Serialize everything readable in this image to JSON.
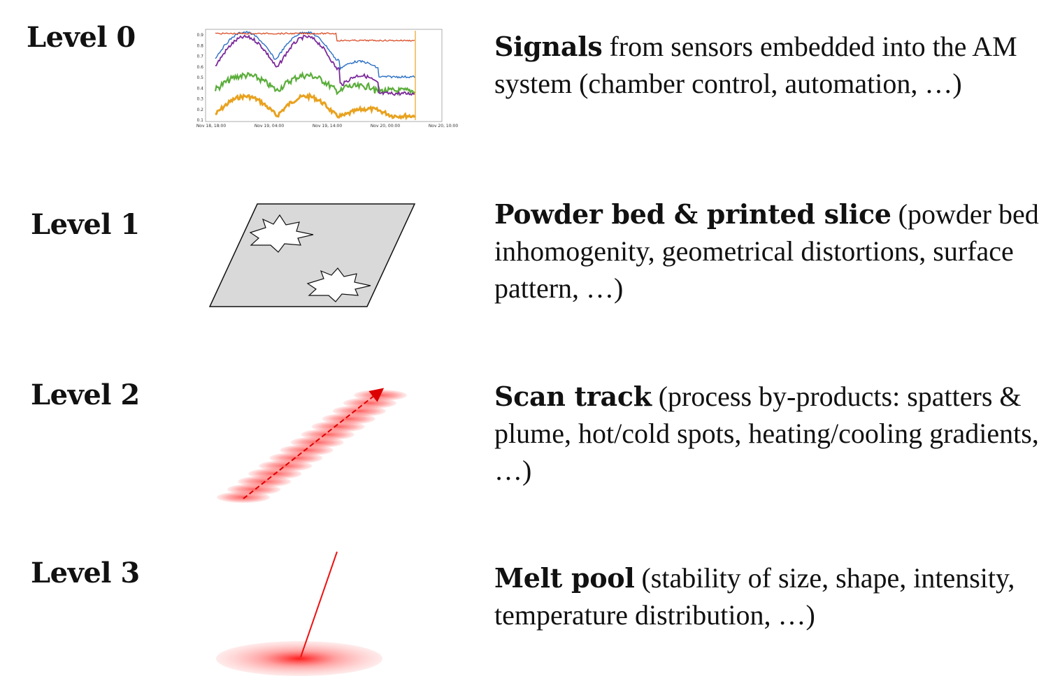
{
  "levels": [
    {
      "label": "Level 0",
      "title": "Signals",
      "rest": " from sensors embedded into the AM system (chamber control, automation, …)",
      "graphic": "sensor-signal-plot"
    },
    {
      "label": "Level 1",
      "title": "Powder bed & printed slice",
      "rest": " (powder bed inhomogenity, geometrical distortions, surface pattern, …)",
      "graphic": "powder-bed-slice"
    },
    {
      "label": "Level 2",
      "title": "Scan track",
      "rest": " (process by-products: spatters & plume, hot/cold spots, heating/cooling gradients, …)",
      "graphic": "scan-track"
    },
    {
      "label": "Level 3",
      "title": "Melt pool",
      "rest": " (stability of size, shape, intensity, temperature distribution, …)",
      "graphic": "melt-pool"
    }
  ],
  "signal_plot": {
    "x_ticks": [
      "Nov 18, 18:00",
      "Nov 19, 04:00",
      "Nov 19, 14:00",
      "Nov 20, 00:00",
      "Nov 20, 10:00"
    ],
    "y_ticks": [
      "0.9",
      "0.8",
      "0.7",
      "0.6",
      "0.5",
      "0.4",
      "0.3",
      "0.2",
      "0.1"
    ],
    "series_colors": [
      "#e8a21f",
      "#5aad3a",
      "#7b2a9a",
      "#2a6fc4",
      "#d8431b"
    ]
  },
  "colors": {
    "laser": "#ee1111",
    "powder_bed": "#d9d9d9",
    "text": "#111111"
  }
}
